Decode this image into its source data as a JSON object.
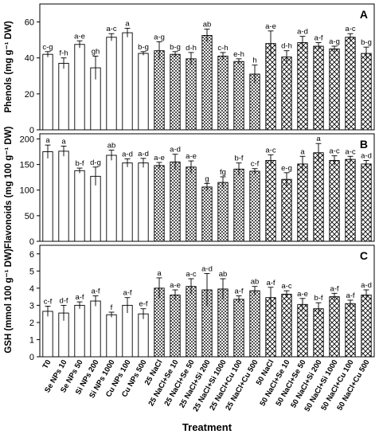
{
  "chart_data": [
    {
      "type": "bar",
      "panel_letter": "A",
      "ylabel": "Phenols (mg g⁻¹ DW)",
      "ylim": [
        0,
        70
      ],
      "yticks": [
        0,
        20,
        40,
        60
      ],
      "categories": [
        "T0",
        "Se NPs 10",
        "Se NPs 50",
        "Si NPs 200",
        "Si NPs 1000",
        "Cu NPs 100",
        "Cu NPs 500",
        "25 NaCl",
        "25 NaCl+Se 10",
        "25 NaCl+Se 50",
        "25 NaCl+Si 200",
        "25 NaCl+Si 1000",
        "25 NaCl+Cu 100",
        "25 NaCl+Cu 500",
        "50 NaCl",
        "50 NaCl+Se 10",
        "50 NaCl+Se 50",
        "50 NaCl+Si 200",
        "50 NaCl+Si 1000",
        "50 NaCl+Cu 100",
        "50 NaCl+Cu 500"
      ],
      "values": [
        42,
        37,
        47.5,
        34.5,
        51.5,
        54,
        42.5,
        44,
        42,
        39.5,
        52.5,
        41,
        38,
        31,
        48,
        40.5,
        48.5,
        46.5,
        45,
        51.5,
        42.5
      ],
      "errors": [
        1.5,
        3,
        2,
        6.5,
        2,
        2.5,
        1,
        5,
        1.5,
        3.5,
        3.5,
        2,
        1.5,
        5,
        7,
        3.5,
        3.5,
        2,
        1.5,
        2,
        3.5
      ],
      "letters": [
        "c-g",
        "f-h",
        "a-e",
        "gh",
        "a-c",
        "a",
        "b-g",
        "a-g",
        "b-g",
        "d-h",
        "ab",
        "c-h",
        "e-h",
        "h",
        "a-e",
        "d-h",
        "a-d",
        "a-f",
        "a-g",
        "a-c",
        "b-g"
      ]
    },
    {
      "type": "bar",
      "panel_letter": "B",
      "ylabel": "Flavonoids (mg 100 g⁻¹ DW)",
      "ylim": [
        0,
        210
      ],
      "yticks": [
        0,
        50,
        100,
        150,
        200
      ],
      "categories": [
        "T0",
        "Se NPs 10",
        "Se NPs 50",
        "Si NPs 200",
        "Si NPs 1000",
        "Cu NPs 100",
        "Cu NPs 500",
        "25 NaCl",
        "25 NaCl+Se 10",
        "25 NaCl+Se 50",
        "25 NaCl+Si 200",
        "25 NaCl+Si 1000",
        "25 NaCl+Cu 100",
        "25 NaCl+Cu 500",
        "50 NaCl",
        "50 NaCl+Se 10",
        "50 NaCl+Se 50",
        "50 NaCl+Si 200",
        "50 NaCl+Si 1000",
        "50 NaCl+Cu 100",
        "50 NaCl+Cu 500"
      ],
      "values": [
        175,
        176,
        138,
        127,
        168,
        153,
        153,
        148,
        155,
        145,
        106,
        115,
        141,
        137,
        158,
        121,
        151,
        173,
        158,
        160,
        151
      ],
      "errors": [
        13,
        10,
        5,
        18,
        10,
        8,
        9,
        6,
        15,
        12,
        7,
        11,
        12,
        5,
        11,
        13,
        15,
        18,
        9,
        6,
        7
      ],
      "letters": [
        "a",
        "a",
        "b-f",
        "d-g",
        "ab",
        "a-d",
        "a-d",
        "a-e",
        "a-d",
        "a-e",
        "g",
        "fg",
        "b-f",
        "c-f",
        "a-c",
        "e-g",
        "a",
        "a",
        "a-c",
        "a-c",
        "a-d"
      ]
    },
    {
      "type": "bar",
      "panel_letter": "C",
      "ylabel": "GSH (mmol 100 g⁻¹ DW)",
      "ylim": [
        0,
        6.5
      ],
      "yticks": [
        0,
        1,
        2,
        3,
        4,
        5,
        6
      ],
      "categories": [
        "T0",
        "Se NPs 10",
        "Se NPs 50",
        "Si NPs 200",
        "Si NPs 1000",
        "Cu NPs 100",
        "Cu NPs 500",
        "25 NaCl",
        "25 NaCl+Se 10",
        "25 NaCl+Se 50",
        "25 NaCl+Si 200",
        "25 NaCl+Si 1000",
        "25 NaCl+Cu 100",
        "25 NaCl+Cu 500",
        "50 NaCl",
        "50 NaCl+Se 10",
        "50 NaCl+Se 50",
        "50 NaCl+Si 200",
        "50 NaCl+Si 1000",
        "50 NaCl+Cu 100",
        "50 NaCl+Cu 500"
      ],
      "values": [
        2.65,
        2.55,
        3.0,
        3.25,
        2.45,
        3.0,
        2.5,
        4.0,
        3.6,
        4.1,
        3.9,
        3.95,
        3.35,
        3.85,
        3.45,
        3.65,
        3.05,
        2.8,
        3.5,
        3.1,
        3.6
      ],
      "errors": [
        0.3,
        0.45,
        0.2,
        0.3,
        0.15,
        0.45,
        0.3,
        0.6,
        0.3,
        0.45,
        0.95,
        0.6,
        0.2,
        0.25,
        0.6,
        0.2,
        0.35,
        0.35,
        0.2,
        0.2,
        0.3
      ],
      "letters": [
        "c-f",
        "d-f",
        "a-f",
        "a-f",
        "f",
        "a-f",
        "e-f",
        "a",
        "a-e",
        "a-c",
        "a-d",
        "ab",
        "a-f",
        "ab",
        "a-f",
        "a-c",
        "a-e",
        "b-f",
        "a-f",
        "a-f",
        "a-d"
      ]
    }
  ],
  "xlabel": "Treatment",
  "bar_patterns": [
    "plain",
    "plain",
    "plain",
    "plain",
    "plain",
    "plain",
    "plain",
    "checker",
    "checker",
    "checker",
    "checker",
    "checker",
    "checker",
    "checker",
    "crosshatch",
    "crosshatch",
    "crosshatch",
    "crosshatch",
    "crosshatch",
    "crosshatch",
    "crosshatch"
  ]
}
